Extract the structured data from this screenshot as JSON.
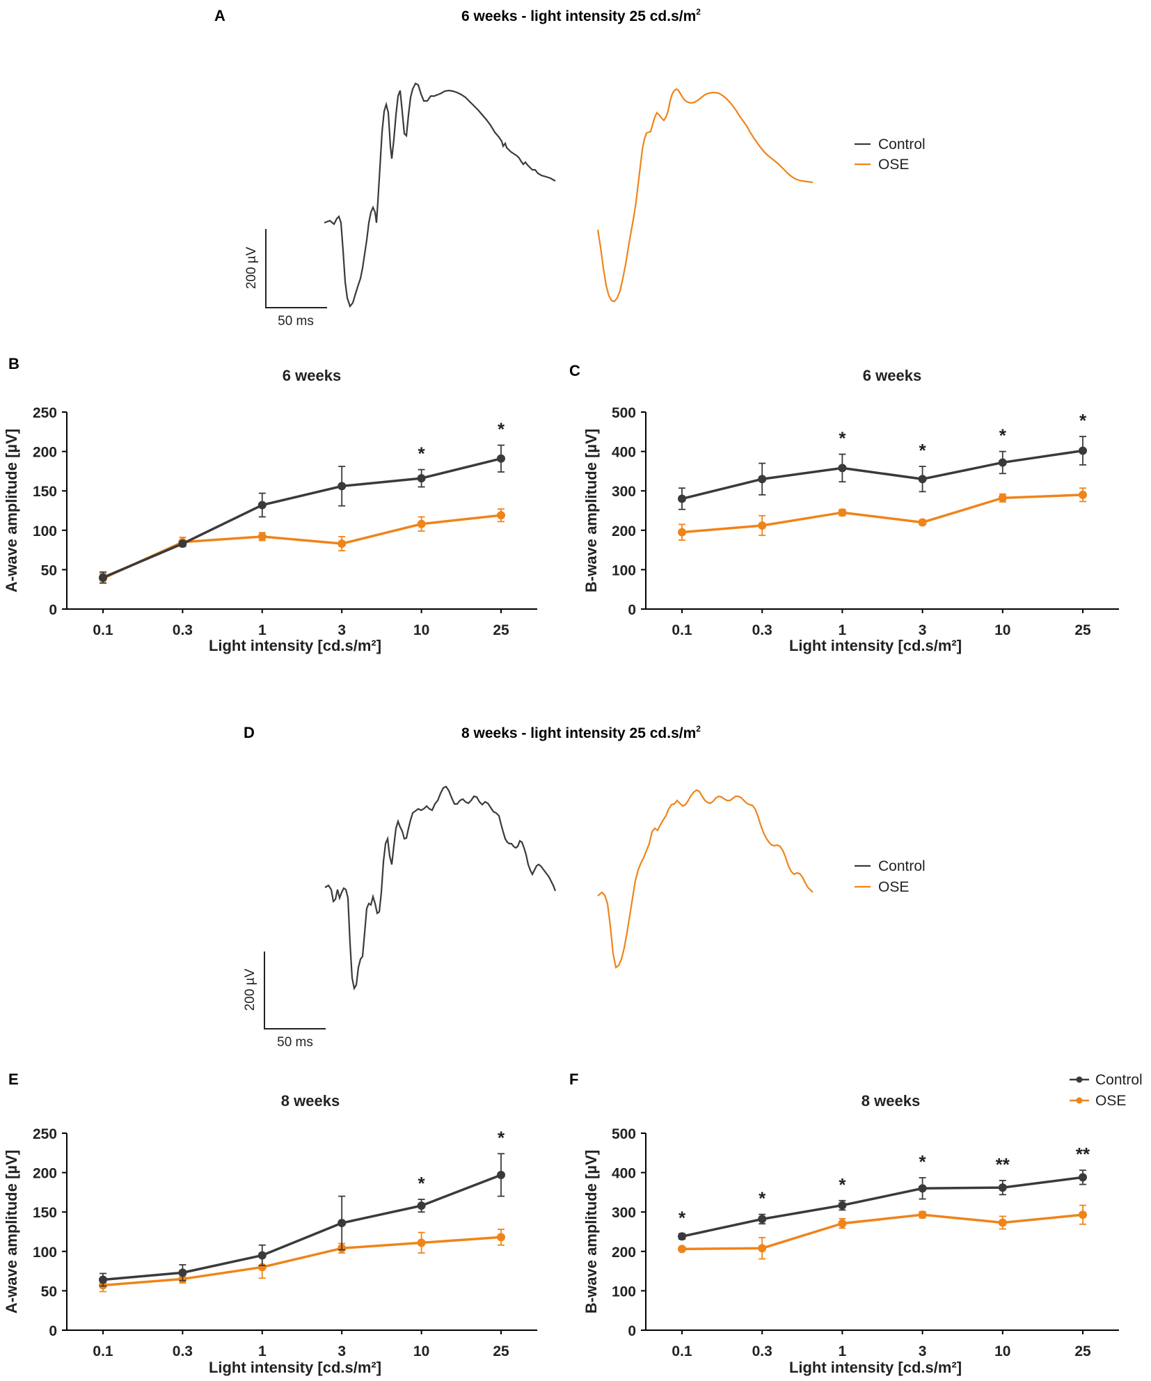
{
  "colors": {
    "control": "#3a3a3a",
    "ose": "#ef8419"
  },
  "chart_data": [
    {
      "id": "A",
      "type": "line",
      "panel_label": "A",
      "title": "6 weeks - light intensity 25 cd.s/m",
      "title_sup": "2",
      "description_kind": "erg-traces",
      "legend": [
        "Control",
        "OSE"
      ],
      "scalebar": {
        "y_label": "200 µV",
        "x_label": "50 ms"
      }
    },
    {
      "id": "B",
      "type": "line",
      "panel_label": "B",
      "title": "6 weeks",
      "xlabel": "Light intensity [cd.s/m²]",
      "ylabel": "A-wave amplitude [µV]",
      "categories": [
        "0.1",
        "0.3",
        "1",
        "3",
        "10",
        "25"
      ],
      "ylim": [
        0,
        250
      ],
      "yticks": [
        "0",
        "50",
        "100",
        "150",
        "200",
        "250"
      ],
      "series": [
        {
          "name": "Control",
          "values": [
            40,
            83,
            132,
            156,
            166,
            191
          ],
          "errors": [
            7,
            3,
            15,
            25,
            11,
            17
          ]
        },
        {
          "name": "OSE",
          "values": [
            39,
            85,
            92,
            83,
            108,
            119
          ],
          "errors": [
            6,
            6,
            5,
            9,
            9,
            8
          ]
        }
      ],
      "significance": [
        "",
        "",
        "",
        "",
        "*",
        "*"
      ]
    },
    {
      "id": "C",
      "type": "line",
      "panel_label": "C",
      "title": "6 weeks",
      "xlabel": "Light intensity [cd.s/m²]",
      "ylabel": "B-wave amplitude [µV]",
      "categories": [
        "0.1",
        "0.3",
        "1",
        "3",
        "10",
        "25"
      ],
      "ylim": [
        0,
        500
      ],
      "yticks": [
        "0",
        "100",
        "200",
        "300",
        "400",
        "500"
      ],
      "series": [
        {
          "name": "Control",
          "values": [
            280,
            330,
            358,
            330,
            372,
            402
          ],
          "errors": [
            27,
            40,
            35,
            32,
            28,
            36
          ]
        },
        {
          "name": "OSE",
          "values": [
            195,
            212,
            245,
            220,
            282,
            290
          ],
          "errors": [
            20,
            25,
            8,
            6,
            10,
            17
          ]
        }
      ],
      "significance": [
        "",
        "",
        "*",
        "*",
        "*",
        "*"
      ]
    },
    {
      "id": "D",
      "type": "line",
      "panel_label": "D",
      "title": "8 weeks - light intensity 25 cd.s/m",
      "title_sup": "2",
      "description_kind": "erg-traces",
      "legend": [
        "Control",
        "OSE"
      ],
      "scalebar": {
        "y_label": "200 µV",
        "x_label": "50 ms"
      }
    },
    {
      "id": "E",
      "type": "line",
      "panel_label": "E",
      "title": "8 weeks",
      "xlabel": "Light intensity [cd.s/m²]",
      "ylabel": "A-wave amplitude [µV]",
      "categories": [
        "0.1",
        "0.3",
        "1",
        "3",
        "10",
        "25"
      ],
      "ylim": [
        0,
        250
      ],
      "yticks": [
        "0",
        "50",
        "100",
        "150",
        "200",
        "250"
      ],
      "series": [
        {
          "name": "Control",
          "values": [
            64,
            73,
            95,
            136,
            158,
            197
          ],
          "errors": [
            8,
            10,
            13,
            34,
            8,
            27
          ]
        },
        {
          "name": "OSE",
          "values": [
            57,
            65,
            80,
            104,
            111,
            118
          ],
          "errors": [
            8,
            5,
            14,
            6,
            13,
            10
          ]
        }
      ],
      "significance": [
        "",
        "",
        "",
        "",
        "*",
        "*"
      ]
    },
    {
      "id": "F",
      "type": "line",
      "panel_label": "F",
      "title": "8 weeks",
      "xlabel": "Light intensity [cd.s/m²]",
      "ylabel": "B-wave amplitude [µV]",
      "categories": [
        "0.1",
        "0.3",
        "1",
        "3",
        "10",
        "25"
      ],
      "ylim": [
        0,
        500
      ],
      "yticks": [
        "0",
        "100",
        "200",
        "300",
        "400",
        "500"
      ],
      "series": [
        {
          "name": "Control",
          "values": [
            238,
            282,
            317,
            360,
            362,
            388
          ],
          "errors": [
            7,
            12,
            12,
            27,
            18,
            18
          ]
        },
        {
          "name": "OSE",
          "values": [
            206,
            208,
            271,
            293,
            273,
            293
          ],
          "errors": [
            5,
            27,
            12,
            8,
            16,
            24
          ]
        }
      ],
      "significance": [
        "*",
        "*",
        "*",
        "*",
        "**",
        "**"
      ],
      "legend": [
        "Control",
        "OSE"
      ]
    }
  ]
}
